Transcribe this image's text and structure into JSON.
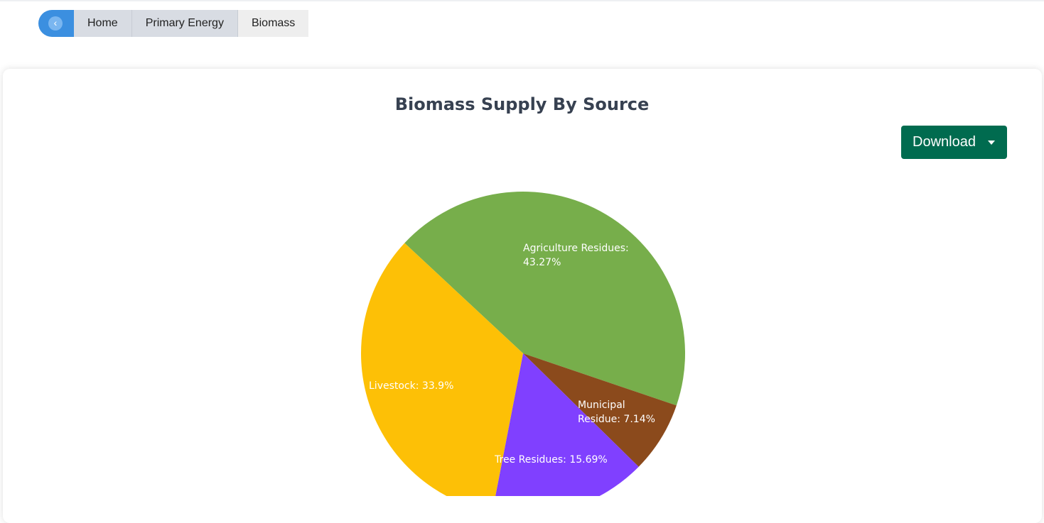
{
  "breadcrumb": {
    "items": [
      "Home",
      "Primary Energy",
      "Biomass"
    ]
  },
  "download_button": {
    "label": "Download"
  },
  "chart_data": {
    "type": "pie",
    "title": "Biomass Supply By Source",
    "values": [
      43.27,
      7.14,
      15.69,
      33.9
    ],
    "value_labels": [
      "Agriculture Residues: 43.27%",
      "Municipal Residue: 7.14%",
      "Tree Residues: 15.69%",
      "Livestock: 33.9%"
    ],
    "colors": [
      "#77ae4b",
      "#8b4a1c",
      "#8040ff",
      "#fdc006"
    ]
  }
}
